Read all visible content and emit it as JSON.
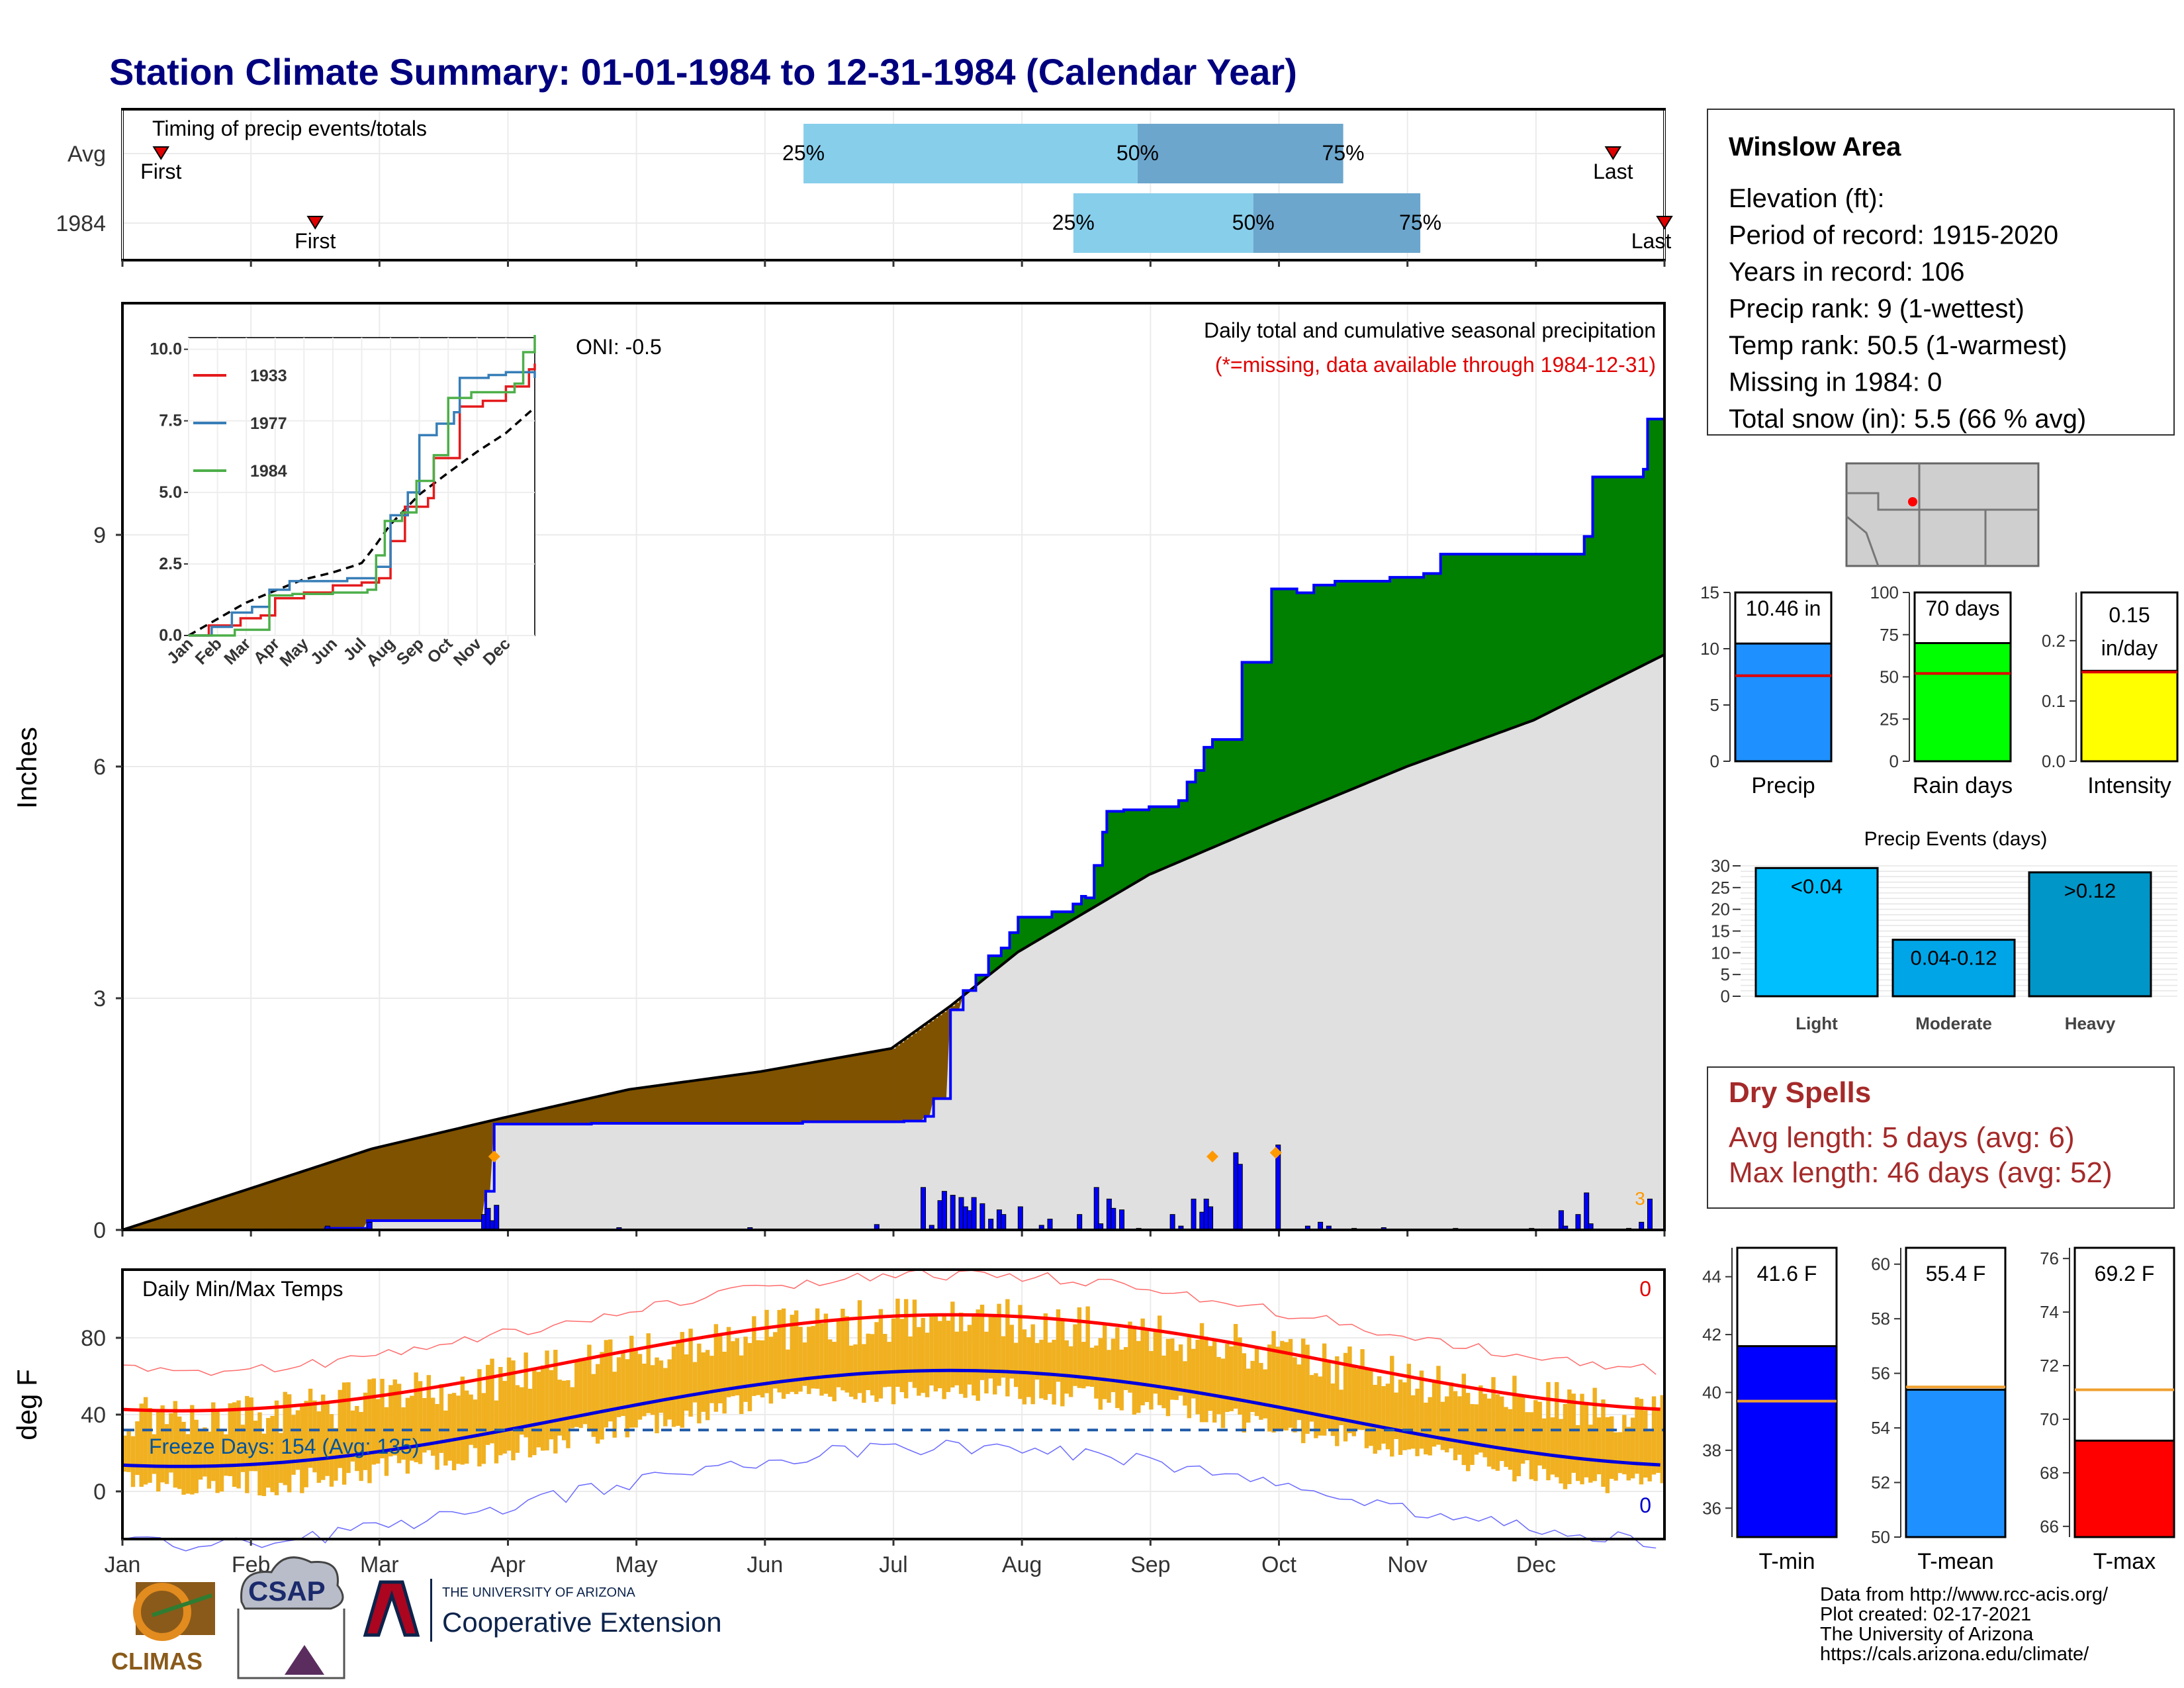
{
  "title": "Station Climate Summary: 01-01-1984 to 12-31-1984 (Calendar Year)",
  "timing": {
    "label": "Timing of precip events/totals",
    "rows": [
      {
        "name": "Avg",
        "first_label": "First",
        "last_label": "Last",
        "first_month": 0.3,
        "last_month": 11.6,
        "q25": 5.3,
        "q50": 7.9,
        "q75": 9.5,
        "q25_label": "25%",
        "q50_label": "50%",
        "q75_label": "75%"
      },
      {
        "name": "1984",
        "first_label": "First",
        "last_label": "Last",
        "first_month": 1.5,
        "last_month": 12.0,
        "q25": 7.4,
        "q50": 8.8,
        "q75": 10.1,
        "q25_label": "25%",
        "q50_label": "50%",
        "q75_label": "75%"
      }
    ]
  },
  "precip": {
    "ylabel": "Inches",
    "ticks": [
      "0",
      "3",
      "6",
      "9"
    ],
    "oni": "ONI: -0.5",
    "caption": "Daily total and cumulative seasonal precipitation",
    "missing_note": "(*=missing, data available through 1984-12-31)",
    "dec_flag": "3",
    "colors": {
      "deficit": "#7f5200",
      "surplus": "#008000",
      "normal": "#e0e0e0",
      "line": "#0000ff"
    }
  },
  "inset": {
    "ticks": [
      "0.0",
      "2.5",
      "5.0",
      "7.5",
      "10.0"
    ],
    "months": [
      "Jan",
      "Feb",
      "Mar",
      "Apr",
      "May",
      "Jun",
      "Jul",
      "Aug",
      "Sep",
      "Oct",
      "Nov",
      "Dec"
    ],
    "legend": [
      {
        "name": "1933",
        "color": "#e41a1c"
      },
      {
        "name": "1977",
        "color": "#377eb8"
      },
      {
        "name": "1984",
        "color": "#4daf4a"
      }
    ]
  },
  "temps": {
    "ylabel": "deg F",
    "label": "Daily Min/Max Temps",
    "ticks": [
      "0",
      "40",
      "80"
    ],
    "freeze_label": "Freeze Days: 154 (Avg: 135)",
    "missing_top": "0",
    "missing_bottom": "0"
  },
  "months": [
    "Jan",
    "Feb",
    "Mar",
    "Apr",
    "May",
    "Jun",
    "Jul",
    "Aug",
    "Sep",
    "Oct",
    "Nov",
    "Dec"
  ],
  "station": {
    "name": "Winslow Area",
    "lines": [
      "Elevation (ft):",
      "Period of record: 1915-2020",
      "Years in record: 106",
      "Precip rank: 9 (1-wettest)",
      "Temp rank: 50.5 (1-warmest)",
      "Missing in 1984: 0",
      "Total snow (in): 5.5 (66 % avg)"
    ]
  },
  "summary_bars": [
    {
      "name": "Precip",
      "label": "10.46 in",
      "value": 10.46,
      "avg": 7.6,
      "max": 15,
      "ticks": [
        "0",
        "5",
        "10",
        "15"
      ],
      "color": "#1e90ff"
    },
    {
      "name": "Rain days",
      "label": "70 days",
      "value": 70,
      "avg": 52,
      "max": 100,
      "ticks": [
        "0",
        "25",
        "50",
        "75",
        "100"
      ],
      "color": "#00ff00"
    },
    {
      "name": "Intensity",
      "label": "0.15 in/day",
      "value": 0.15,
      "avg": 0.148,
      "max": 0.28,
      "ticks": [
        "0.0",
        "0.1",
        "0.2"
      ],
      "color": "#ffff00"
    }
  ],
  "events": {
    "title": "Precip Events (days)",
    "ticks": [
      "0",
      "5",
      "10",
      "15",
      "20",
      "25",
      "30"
    ],
    "bars": [
      {
        "name": "Light",
        "label": "<0.04",
        "value": 29.5,
        "color": "#00bfff"
      },
      {
        "name": "Moderate",
        "label": "0.04-0.12",
        "value": 13,
        "color": "#00a5e8"
      },
      {
        "name": "Heavy",
        "label": ">0.12",
        "value": 28.5,
        "color": "#0096c8"
      }
    ]
  },
  "dry_spells": {
    "title": "Dry Spells",
    "avg_line": "Avg length: 5 days (avg: 6)",
    "max_line": "Max length: 46 days (avg: 52)"
  },
  "temp_bars": [
    {
      "name": "T-min",
      "label": "41.6 F",
      "value": 41.6,
      "avg": 39.7,
      "min": 35,
      "max": 45,
      "ticks": [
        "36",
        "38",
        "40",
        "42",
        "44"
      ],
      "color": "#0000ff"
    },
    {
      "name": "T-mean",
      "label": "55.4 F",
      "value": 55.4,
      "avg": 55.5,
      "min": 50,
      "max": 60.6,
      "ticks": [
        "50",
        "52",
        "54",
        "56",
        "58",
        "60"
      ],
      "color": "#1e90ff"
    },
    {
      "name": "T-max",
      "label": "69.2 F",
      "value": 69.2,
      "avg": 71.1,
      "min": 65.6,
      "max": 76.4,
      "ticks": [
        "66",
        "68",
        "70",
        "72",
        "74",
        "76"
      ],
      "color": "#ff0000"
    }
  ],
  "footer": {
    "lines": [
      "Data from http://www.rcc-acis.org/",
      "Plot created: 02-17-2021",
      "The University of Arizona",
      "https://cals.arizona.edu/climate/"
    ],
    "logo_climas": "CLIMAS",
    "logo_csap": "CSAP",
    "ua_small": "THE UNIVERSITY OF ARIZONA",
    "ua_big": "Cooperative Extension"
  }
}
